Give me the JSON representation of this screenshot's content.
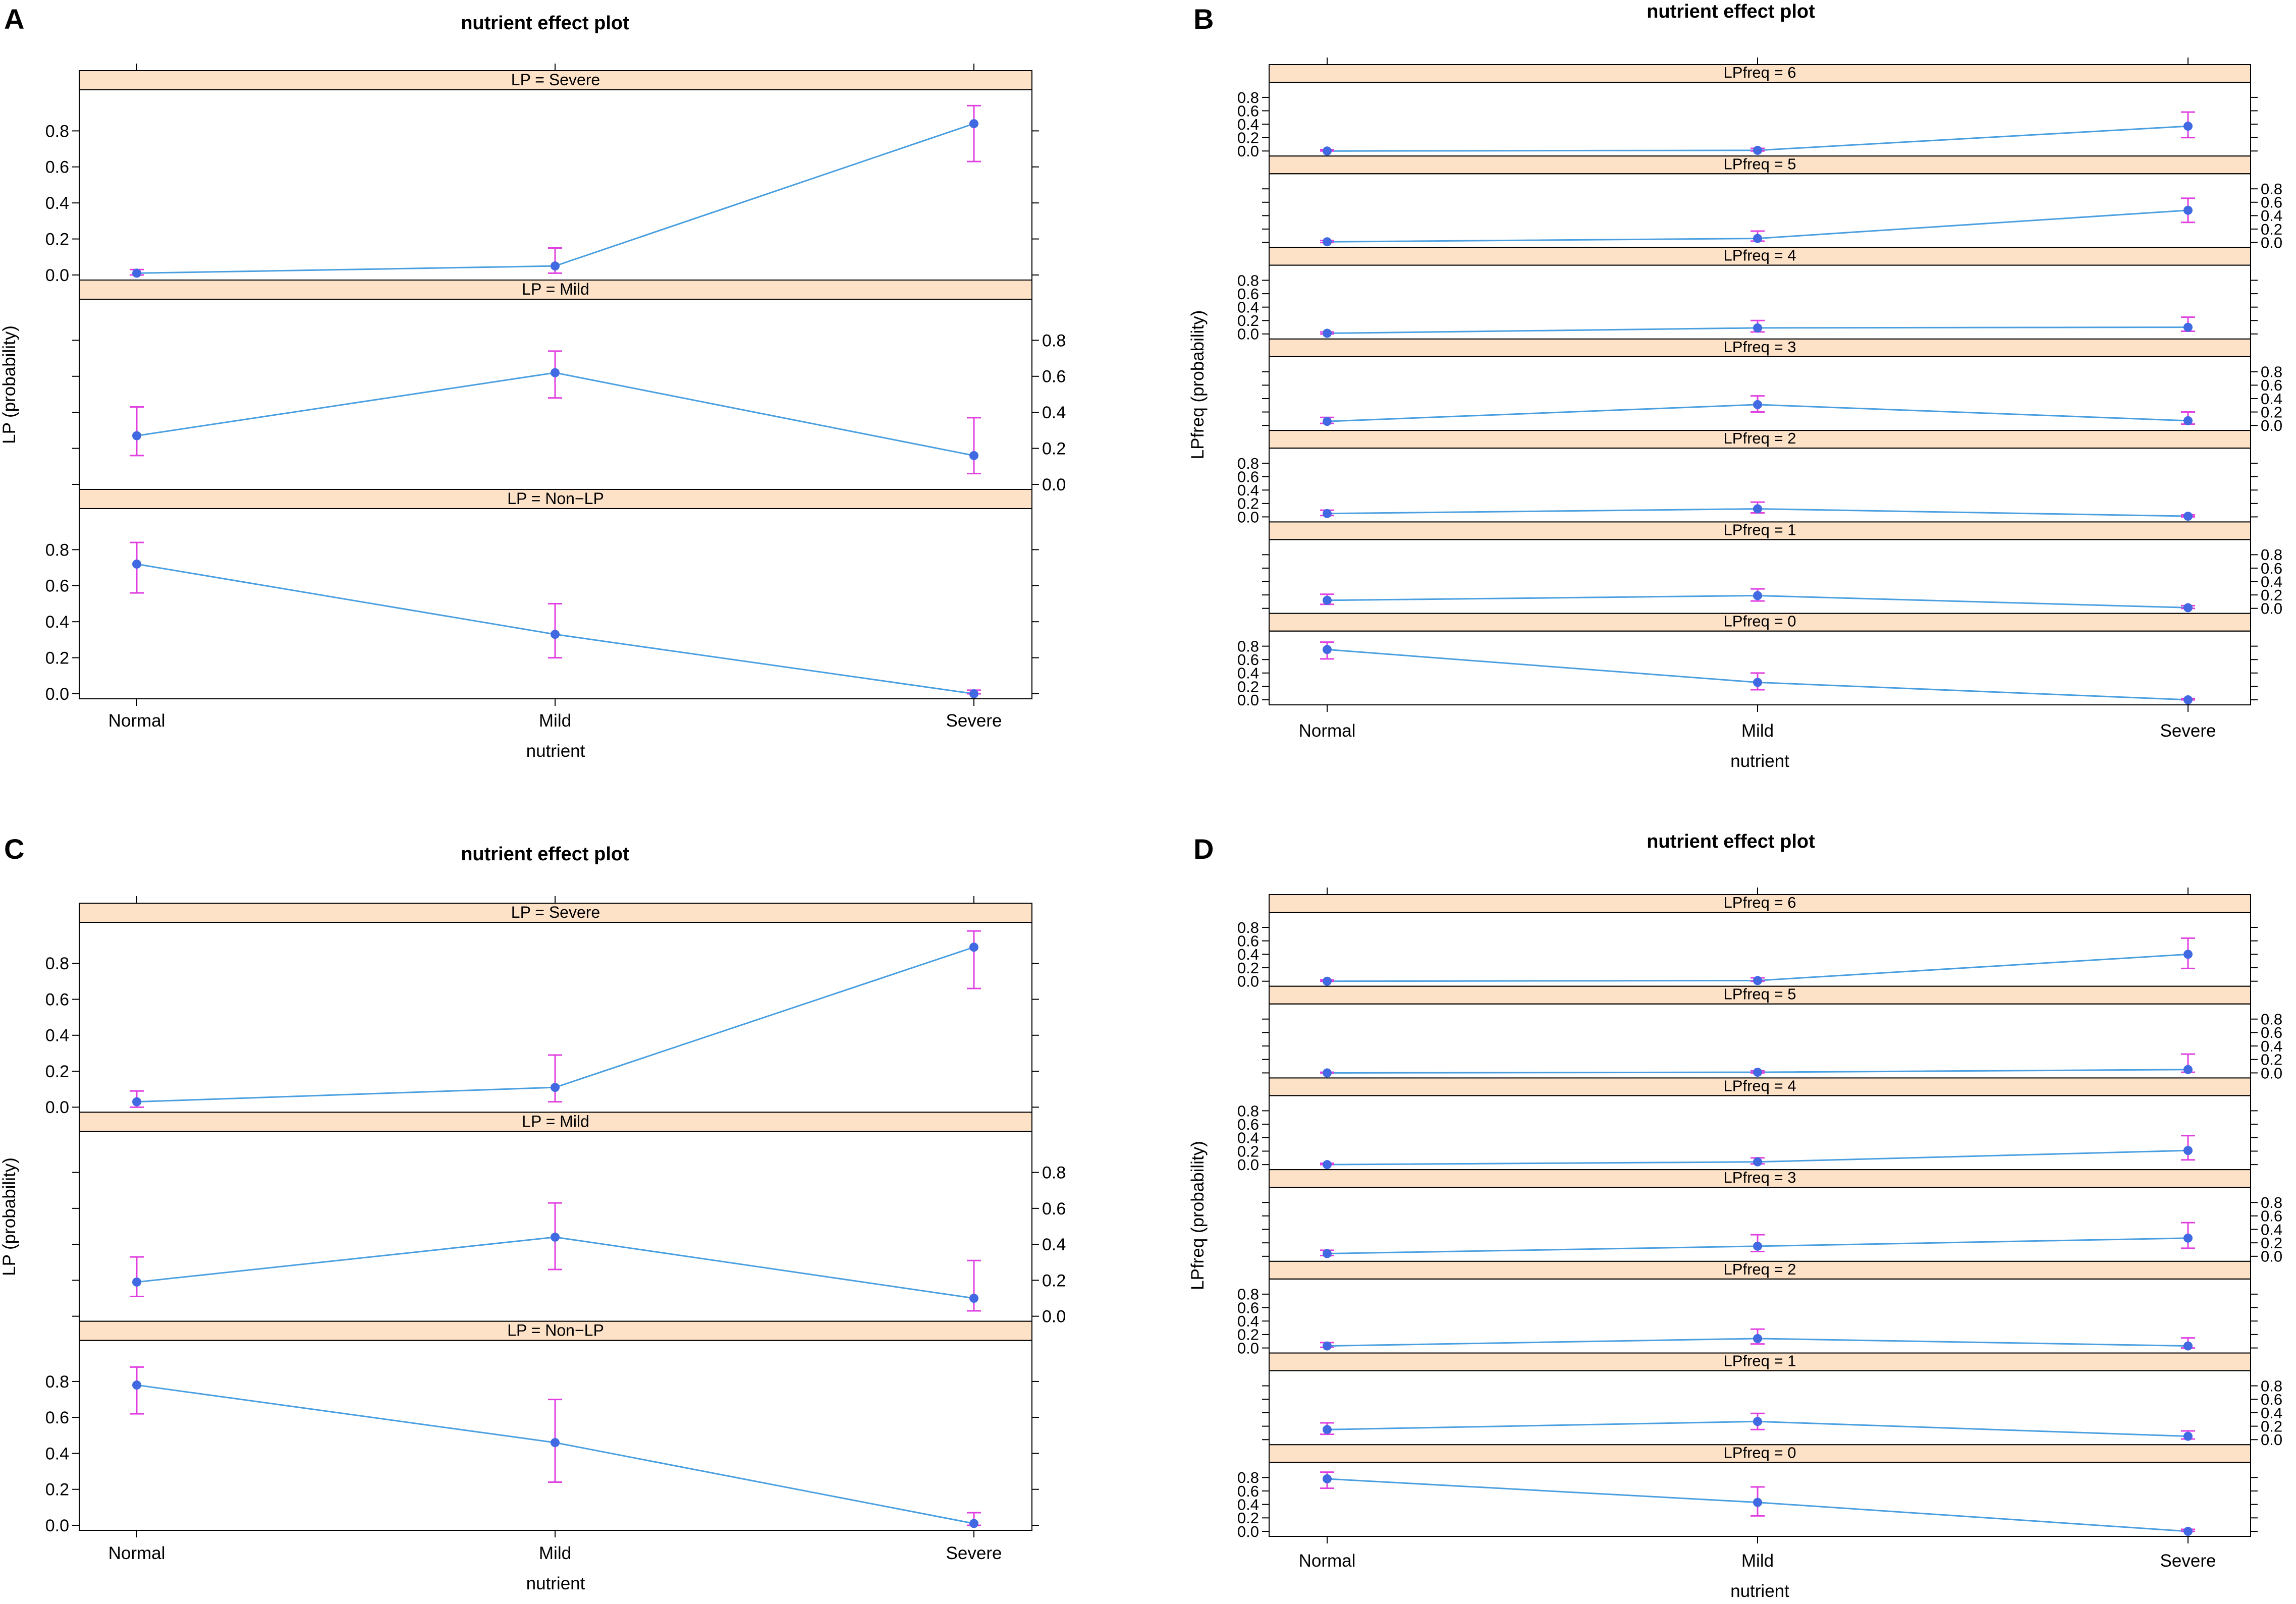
{
  "colors": {
    "strip_fill": "#fde2c8",
    "line": "#4a9fe0",
    "point": "#4169e1",
    "error_bar": "#e040e0",
    "axis": "#000000"
  },
  "chart_data": [
    {
      "id": "A",
      "type": "line",
      "panel_label": "A",
      "title": "nutrient effect plot",
      "xlabel": "nutrient",
      "ylabel": "LP (probability)",
      "categories": [
        "Normal",
        "Mild",
        "Severe"
      ],
      "ylim": [
        0,
        1
      ],
      "yticks": [
        0.0,
        0.2,
        0.4,
        0.6,
        0.8
      ],
      "ytick_labels": [
        "0.0",
        "0.2",
        "0.4",
        "0.6",
        "0.8"
      ],
      "facets": [
        {
          "label": "LP = Severe",
          "values": [
            0.01,
            0.05,
            0.84
          ],
          "lower": [
            0.0,
            0.01,
            0.63
          ],
          "upper": [
            0.03,
            0.15,
            0.94
          ]
        },
        {
          "label": "LP = Mild",
          "values": [
            0.27,
            0.62,
            0.16
          ],
          "lower": [
            0.16,
            0.48,
            0.06
          ],
          "upper": [
            0.43,
            0.74,
            0.37
          ]
        },
        {
          "label": "LP = Non−LP",
          "values": [
            0.72,
            0.33,
            0.0
          ],
          "lower": [
            0.56,
            0.2,
            0.0
          ],
          "upper": [
            0.84,
            0.5,
            0.02
          ]
        }
      ]
    },
    {
      "id": "B",
      "type": "line",
      "panel_label": "B",
      "title": "nutrient effect plot",
      "xlabel": "nutrient",
      "ylabel": "LPfreq (probability)",
      "categories": [
        "Normal",
        "Mild",
        "Severe"
      ],
      "ylim": [
        0,
        0.95
      ],
      "yticks": [
        0.0,
        0.2,
        0.4,
        0.6,
        0.8
      ],
      "ytick_labels": [
        "0.0",
        "0.2",
        "0.4",
        "0.6",
        "0.8"
      ],
      "facets": [
        {
          "label": "LPfreq = 6",
          "values": [
            0.0,
            0.01,
            0.37
          ],
          "lower": [
            0.0,
            0.0,
            0.2
          ],
          "upper": [
            0.02,
            0.04,
            0.58
          ]
        },
        {
          "label": "LPfreq = 5",
          "values": [
            0.01,
            0.06,
            0.48
          ],
          "lower": [
            0.0,
            0.02,
            0.3
          ],
          "upper": [
            0.03,
            0.17,
            0.66
          ]
        },
        {
          "label": "LPfreq = 4",
          "values": [
            0.01,
            0.09,
            0.1
          ],
          "lower": [
            0.0,
            0.03,
            0.04
          ],
          "upper": [
            0.03,
            0.2,
            0.25
          ]
        },
        {
          "label": "LPfreq = 3",
          "values": [
            0.06,
            0.31,
            0.07
          ],
          "lower": [
            0.03,
            0.2,
            0.02
          ],
          "upper": [
            0.12,
            0.44,
            0.2
          ]
        },
        {
          "label": "LPfreq = 2",
          "values": [
            0.05,
            0.12,
            0.01
          ],
          "lower": [
            0.02,
            0.06,
            0.0
          ],
          "upper": [
            0.1,
            0.22,
            0.03
          ]
        },
        {
          "label": "LPfreq = 1",
          "values": [
            0.12,
            0.19,
            0.01
          ],
          "lower": [
            0.06,
            0.11,
            0.0
          ],
          "upper": [
            0.21,
            0.29,
            0.04
          ]
        },
        {
          "label": "LPfreq = 0",
          "values": [
            0.75,
            0.26,
            0.0
          ],
          "lower": [
            0.61,
            0.15,
            0.0
          ],
          "upper": [
            0.86,
            0.4,
            0.02
          ]
        }
      ]
    },
    {
      "id": "C",
      "type": "line",
      "panel_label": "C",
      "title": "nutrient effect plot",
      "xlabel": "nutrient",
      "ylabel": "LP (probability)",
      "categories": [
        "Normal",
        "Mild",
        "Severe"
      ],
      "ylim": [
        0,
        1
      ],
      "yticks": [
        0.0,
        0.2,
        0.4,
        0.6,
        0.8
      ],
      "ytick_labels": [
        "0.0",
        "0.2",
        "0.4",
        "0.6",
        "0.8"
      ],
      "facets": [
        {
          "label": "LP = Severe",
          "values": [
            0.03,
            0.11,
            0.89
          ],
          "lower": [
            0.0,
            0.03,
            0.66
          ],
          "upper": [
            0.09,
            0.29,
            0.98
          ]
        },
        {
          "label": "LP = Mild",
          "values": [
            0.19,
            0.44,
            0.1
          ],
          "lower": [
            0.11,
            0.26,
            0.03
          ],
          "upper": [
            0.33,
            0.63,
            0.31
          ]
        },
        {
          "label": "LP = Non−LP",
          "values": [
            0.78,
            0.46,
            0.01
          ],
          "lower": [
            0.62,
            0.24,
            0.0
          ],
          "upper": [
            0.88,
            0.7,
            0.07
          ]
        }
      ]
    },
    {
      "id": "D",
      "type": "line",
      "panel_label": "D",
      "title": "nutrient effect plot",
      "xlabel": "nutrient",
      "ylabel": "LPfreq (probability)",
      "categories": [
        "Normal",
        "Mild",
        "Severe"
      ],
      "ylim": [
        0,
        0.95
      ],
      "yticks": [
        0.0,
        0.2,
        0.4,
        0.6,
        0.8
      ],
      "ytick_labels": [
        "0.0",
        "0.2",
        "0.4",
        "0.6",
        "0.8"
      ],
      "facets": [
        {
          "label": "LPfreq = 6",
          "values": [
            0.0,
            0.01,
            0.4
          ],
          "lower": [
            0.0,
            0.0,
            0.19
          ],
          "upper": [
            0.02,
            0.05,
            0.64
          ]
        },
        {
          "label": "LPfreq = 5",
          "values": [
            0.0,
            0.01,
            0.05
          ],
          "lower": [
            0.0,
            0.0,
            0.01
          ],
          "upper": [
            0.01,
            0.03,
            0.28
          ]
        },
        {
          "label": "LPfreq = 4",
          "values": [
            0.0,
            0.04,
            0.21
          ],
          "lower": [
            0.0,
            0.01,
            0.07
          ],
          "upper": [
            0.02,
            0.1,
            0.43
          ]
        },
        {
          "label": "LPfreq = 3",
          "values": [
            0.04,
            0.15,
            0.27
          ],
          "lower": [
            0.01,
            0.07,
            0.12
          ],
          "upper": [
            0.09,
            0.32,
            0.5
          ]
        },
        {
          "label": "LPfreq = 2",
          "values": [
            0.03,
            0.14,
            0.03
          ],
          "lower": [
            0.01,
            0.06,
            0.0
          ],
          "upper": [
            0.08,
            0.28,
            0.15
          ]
        },
        {
          "label": "LPfreq = 1",
          "values": [
            0.15,
            0.27,
            0.05
          ],
          "lower": [
            0.08,
            0.15,
            0.01
          ],
          "upper": [
            0.25,
            0.39,
            0.13
          ]
        },
        {
          "label": "LPfreq = 0",
          "values": [
            0.78,
            0.43,
            0.0
          ],
          "lower": [
            0.64,
            0.23,
            0.0
          ],
          "upper": [
            0.88,
            0.66,
            0.03
          ]
        }
      ]
    }
  ]
}
